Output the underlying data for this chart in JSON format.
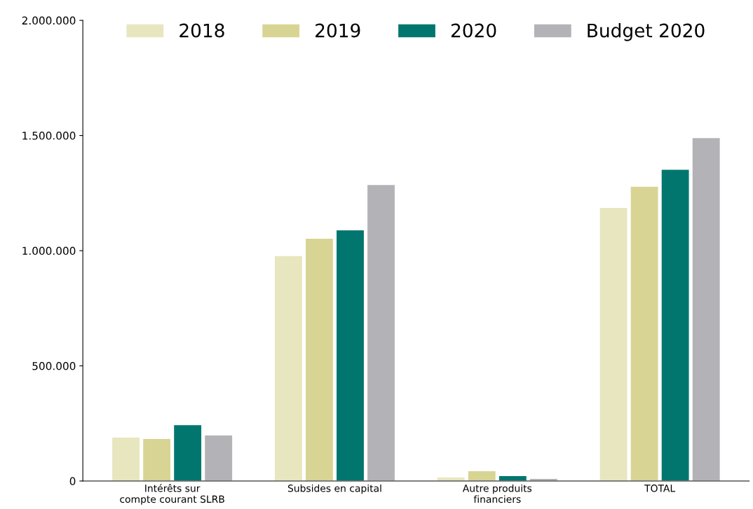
{
  "chart_data": {
    "type": "bar",
    "categories": [
      "Intérêts sur compte courant SLRB",
      "Subsides en capital",
      "Autre produits financiers",
      "TOTAL"
    ],
    "series": [
      {
        "name": "2018",
        "color": "#e8e6bf",
        "values": [
          191000,
          979000,
          18000,
          1188000
        ]
      },
      {
        "name": "2019",
        "color": "#d8d594",
        "values": [
          185000,
          1054000,
          45000,
          1280000
        ]
      },
      {
        "name": "2020",
        "color": "#00766f",
        "values": [
          245000,
          1091000,
          24000,
          1354000
        ]
      },
      {
        "name": "Budget 2020",
        "color": "#b3b3b7",
        "values": [
          200000,
          1288000,
          12000,
          1491000
        ]
      }
    ],
    "ylim": [
      0,
      2000000
    ],
    "yticks": [
      {
        "value": 0,
        "label": "0"
      },
      {
        "value": 500000,
        "label": "500.000"
      },
      {
        "value": 1000000,
        "label": "1.000.000"
      },
      {
        "value": 1500000,
        "label": "1.500.000"
      },
      {
        "value": 2000000,
        "label": "2.000.000"
      }
    ],
    "grid": false,
    "legend": "top"
  }
}
